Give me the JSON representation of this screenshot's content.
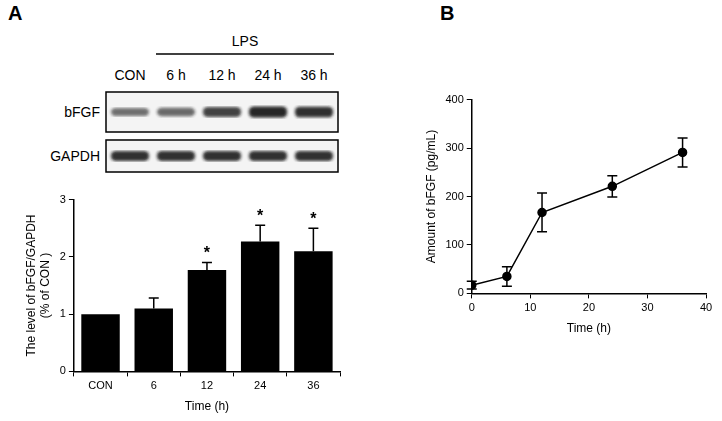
{
  "panel_labels": [
    "A",
    "B"
  ],
  "blot": {
    "treatment": "LPS",
    "lanes": [
      "CON",
      "6 h",
      "12 h",
      "24 h",
      "36 h"
    ],
    "rows": [
      "bFGF",
      "GAPDH"
    ]
  },
  "chart_data": [
    {
      "type": "bar",
      "categories": [
        "CON",
        "6",
        "12",
        "24",
        "36"
      ],
      "values": [
        1,
        1.1,
        1.77,
        2.27,
        2.1
      ],
      "errors": [
        0,
        0.18,
        0.13,
        0.28,
        0.4
      ],
      "annotations": [
        null,
        null,
        "*",
        "*",
        "*"
      ],
      "color": "#000000",
      "x_label": "Time (h)",
      "y_label": [
        "The level of bFGF/GAPDH",
        "(% of CON )"
      ],
      "ylim": [
        0,
        3
      ],
      "yticks": [
        0,
        1,
        2,
        3
      ],
      "grid": false
    },
    {
      "type": "line",
      "x": [
        0,
        6,
        12,
        24,
        36
      ],
      "values": [
        17,
        35,
        167,
        221,
        291
      ],
      "errors": [
        8,
        20,
        40,
        22,
        30
      ],
      "color": "#000000",
      "marker": "circle",
      "x_label": "Time (h)",
      "y_label": "Amount of bFGF (pg/mL)",
      "xlim": [
        0,
        40
      ],
      "xticks": [
        0,
        10,
        20,
        30,
        40
      ],
      "ylim": [
        0,
        400
      ],
      "yticks": [
        0,
        100,
        200,
        300,
        400
      ],
      "grid": false
    }
  ]
}
